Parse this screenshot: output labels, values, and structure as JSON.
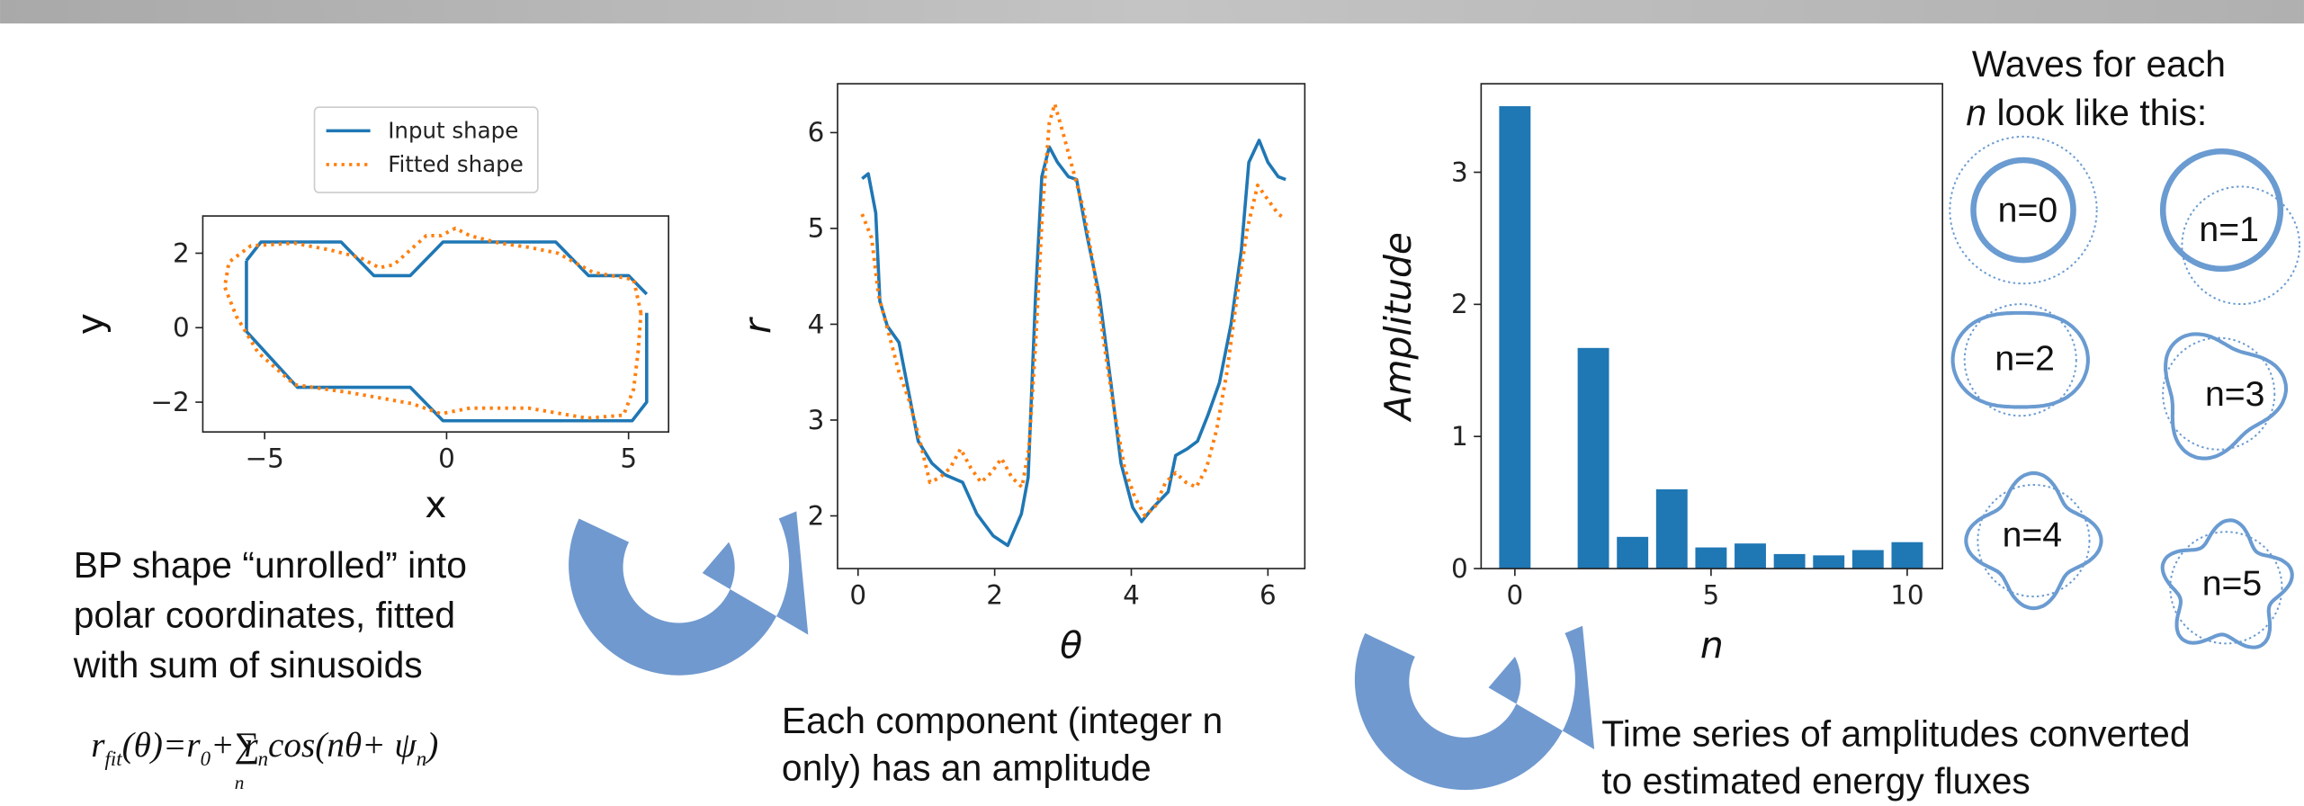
{
  "chart_data": [
    {
      "type": "line",
      "xlabel": "x",
      "ylabel": "y",
      "label_italic": false,
      "legend": "top",
      "xlim": [
        -6.7,
        6.1
      ],
      "ylim": [
        -2.8,
        3.0
      ],
      "xticks": [
        {
          "value": -5,
          "label": "−5"
        },
        0,
        5
      ],
      "yticks": [
        {
          "value": -2,
          "label": "−2"
        },
        0,
        2
      ],
      "series": [
        {
          "name": "Input shape",
          "color": "#1f77b4",
          "dash": "solid",
          "x": [
            -5.5,
            -5.1,
            -2.9,
            -2.0,
            -1.0,
            -0.1,
            3.0,
            3.9,
            5.0,
            5.5,
            5.5,
            5.5,
            5.5,
            5.1,
            -0.1,
            -1.0,
            -4.1,
            -5.5,
            -5.5
          ],
          "values": [
            1.8,
            2.3,
            2.3,
            1.4,
            1.4,
            2.3,
            2.3,
            1.4,
            1.4,
            0.9,
            null,
            0.4,
            -2.0,
            -2.5,
            -2.5,
            -1.6,
            -1.6,
            -0.1,
            1.8
          ]
        },
        {
          "name": "Fitted shape",
          "color": "#ff7f0e",
          "dash": "dotted",
          "x": [
            5.34,
            5.14,
            4.02,
            3.05,
            2.25,
            1.45,
            0.64,
            0.24,
            -0.16,
            -0.56,
            -1.45,
            -1.85,
            -2.37,
            -3.17,
            -4.18,
            -5.38,
            -5.98,
            -6.1,
            -5.78,
            -5.18,
            -4.18,
            -2.57,
            -0.96,
            -0.16,
            0.64,
            2.25,
            3.86,
            4.86,
            5.14,
            5.26,
            5.34
          ],
          "values": [
            0.39,
            1.29,
            1.49,
            2.0,
            2.16,
            2.27,
            2.47,
            2.67,
            2.47,
            2.47,
            1.69,
            1.61,
            1.88,
            2.08,
            2.27,
            2.2,
            1.76,
            1.1,
            0.31,
            -0.67,
            -1.53,
            -1.76,
            -2.04,
            -2.31,
            -2.16,
            -2.16,
            -2.43,
            -2.35,
            -1.65,
            -0.67,
            0.39
          ]
        }
      ]
    },
    {
      "type": "line",
      "xlabel": "θ",
      "ylabel": "r",
      "label_italic": true,
      "xlim": [
        -0.3,
        6.54
      ],
      "ylim": [
        1.45,
        6.51
      ],
      "xticks": [
        0,
        2,
        4,
        6
      ],
      "yticks": [
        2,
        3,
        4,
        5,
        6
      ],
      "series": [
        {
          "color": "#1f77b4",
          "dash": "solid",
          "x": [
            0.06,
            0.15,
            0.26,
            0.32,
            0.43,
            0.6,
            0.71,
            0.88,
            1.08,
            1.27,
            1.53,
            1.74,
            1.98,
            2.19,
            2.39,
            2.49,
            2.6,
            2.69,
            2.8,
            2.92,
            3.08,
            3.2,
            3.35,
            3.53,
            3.7,
            3.85,
            4.02,
            4.15,
            4.32,
            4.54,
            4.65,
            4.82,
            4.97,
            5.12,
            5.29,
            5.46,
            5.61,
            5.72,
            5.87,
            6.0,
            6.15,
            6.26
          ],
          "values": [
            5.52,
            5.57,
            5.16,
            4.24,
            3.98,
            3.81,
            3.4,
            2.78,
            2.55,
            2.43,
            2.35,
            2.02,
            1.79,
            1.69,
            2.02,
            2.4,
            4.31,
            5.54,
            5.85,
            5.69,
            5.54,
            5.51,
            4.93,
            4.31,
            3.39,
            2.55,
            2.09,
            1.94,
            2.09,
            2.25,
            2.63,
            2.7,
            2.78,
            3.05,
            3.39,
            4.0,
            4.77,
            5.69,
            5.92,
            5.69,
            5.54,
            5.51
          ]
        },
        {
          "color": "#ff7f0e",
          "dash": "dotted",
          "x": [
            0.06,
            0.2,
            0.3,
            0.45,
            0.6,
            0.75,
            0.9,
            1.05,
            1.2,
            1.35,
            1.5,
            1.65,
            1.8,
            1.95,
            2.1,
            2.25,
            2.4,
            2.5,
            2.6,
            2.7,
            2.8,
            2.88,
            3.0,
            3.15,
            3.3,
            3.45,
            3.6,
            3.75,
            3.9,
            4.05,
            4.2,
            4.35,
            4.5,
            4.65,
            4.8,
            4.95,
            5.1,
            5.25,
            5.4,
            5.55,
            5.7,
            5.85,
            6.0,
            6.15,
            6.26
          ],
          "values": [
            5.15,
            4.9,
            4.3,
            3.9,
            3.5,
            3.2,
            2.8,
            2.35,
            2.4,
            2.5,
            2.7,
            2.5,
            2.35,
            2.45,
            2.6,
            2.4,
            2.3,
            2.7,
            3.8,
            5.2,
            6.1,
            6.3,
            6.0,
            5.6,
            5.2,
            4.6,
            3.8,
            3.1,
            2.5,
            2.2,
            2.0,
            2.1,
            2.35,
            2.45,
            2.35,
            2.3,
            2.5,
            2.9,
            3.5,
            4.3,
            5.0,
            5.45,
            5.3,
            5.15,
            5.1
          ]
        }
      ]
    },
    {
      "type": "bar",
      "xlabel": "n",
      "ylabel": "Amplitude",
      "label_italic": true,
      "color": "#1f77b4",
      "xlim": [
        -0.86,
        10.9
      ],
      "ylim": [
        0,
        3.67
      ],
      "xticks": [
        0,
        5,
        10
      ],
      "yticks": [
        0,
        1,
        2,
        3
      ],
      "x": [
        0,
        2,
        3,
        4,
        5,
        6,
        7,
        8,
        9,
        10
      ],
      "values": [
        3.5,
        1.67,
        0.24,
        0.6,
        0.16,
        0.19,
        0.11,
        0.1,
        0.14,
        0.2
      ]
    }
  ],
  "captions": [
    {
      "lines": [
        "BP shape “unrolled” into",
        "polar coordinates, fitted",
        "with sum of sinusoids"
      ]
    },
    {
      "lines": [
        "Each component (integer n",
        "only) has an amplitude"
      ]
    },
    {
      "lines": [
        "Time series of amplitudes converted",
        "to estimated energy fluxes"
      ]
    }
  ],
  "formula": [
    {
      "text": "r"
    },
    {
      "sub": "fit"
    },
    {
      "text": "(θ)=r"
    },
    {
      "sub": "0"
    },
    {
      "text": "+∑"
    },
    {
      "under": "n"
    },
    {
      "text": "r"
    },
    {
      "sub": "n"
    },
    {
      "text": "cos(nθ+ ψ"
    },
    {
      "sub": "n"
    },
    {
      "text": ")"
    }
  ],
  "waves": {
    "title": [
      "Waves for each",
      "n",
      "look like this:"
    ],
    "labels": [
      "n=0",
      "n=1",
      "n=2",
      "n=3",
      "n=4",
      "n=5"
    ]
  }
}
